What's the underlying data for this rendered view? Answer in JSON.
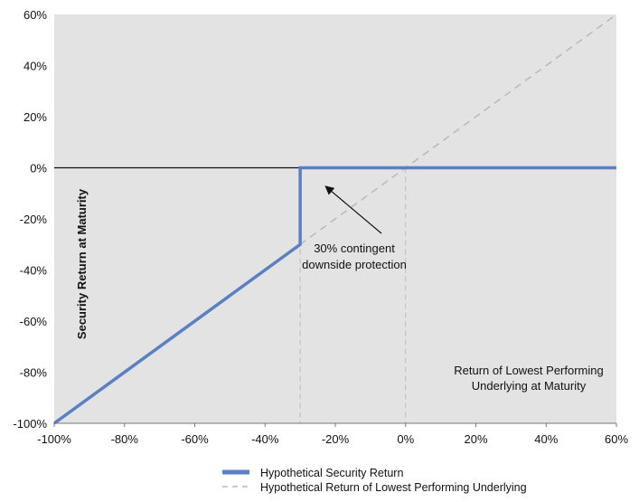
{
  "chart_data": {
    "type": "line",
    "title": "",
    "xlabel": "Return of Lowest Performing Underlying at Maturity",
    "ylabel": "Security Return at Maturity",
    "xlim": [
      -100,
      60
    ],
    "ylim": [
      -100,
      60
    ],
    "x_ticks": [
      -100,
      -80,
      -60,
      -40,
      -20,
      0,
      20,
      40,
      60
    ],
    "y_ticks": [
      -100,
      -80,
      -60,
      -40,
      -20,
      0,
      20,
      40,
      60
    ],
    "x_tick_labels": [
      "-100%",
      "-80%",
      "-60%",
      "-40%",
      "-20%",
      "0%",
      "20%",
      "40%",
      "60%"
    ],
    "y_tick_labels": [
      "-100%",
      "-80%",
      "-60%",
      "-40%",
      "-20%",
      "0%",
      "20%",
      "40%",
      "60%"
    ],
    "reference_lines": {
      "horizontal_zero": 0,
      "vertical_dashed": [
        -30,
        0
      ]
    },
    "series": [
      {
        "name": "Hypothetical Security Return",
        "style": "solid",
        "color": "#5b7fc4",
        "x": [
          -100,
          -30,
          -30,
          60
        ],
        "y": [
          -100,
          -30,
          0,
          0
        ]
      },
      {
        "name": "Hypothetical Return of Lowest Performing Underlying",
        "style": "dashed",
        "color": "#b9b9b9",
        "x": [
          -100,
          60
        ],
        "y": [
          -100,
          60
        ]
      }
    ],
    "annotations": [
      {
        "lines": [
          "30% contingent",
          "downside protection"
        ],
        "arrow_to": [
          -23,
          -7
        ]
      }
    ],
    "legend": {
      "position": "bottom-center",
      "entries": [
        "Hypothetical Security Return",
        "Hypothetical Return of Lowest Performing Underlying"
      ]
    },
    "colors": {
      "plot_background": "#e3e3e3",
      "security_line": "#5b7fc4",
      "underlying_line": "#b9b9b9",
      "zero_line": "#111111"
    },
    "grid": false
  }
}
